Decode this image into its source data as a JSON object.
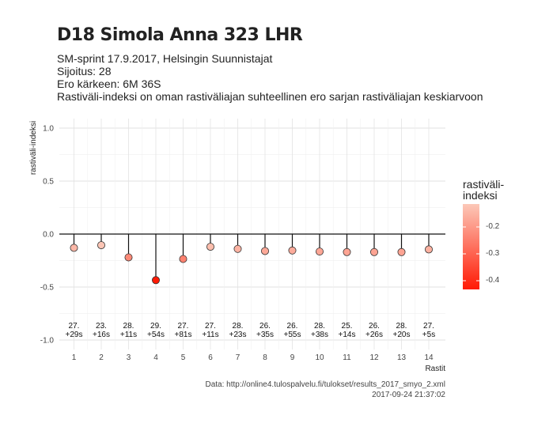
{
  "header": {
    "title": "D18 Simola Anna 323 LHR",
    "line1": "SM-sprint 17.9.2017, Helsingin Suunnistajat",
    "line2": "Sijoitus: 28",
    "line3": "Ero kärkeen: 6M 36S",
    "line4": "Rastiväli-indeksi on oman rastiväliajan suhteellinen ero sarjan rastiväliajan keskiarvoon"
  },
  "caption": {
    "source": "Data: http://online4.tulospalvelu.fi/tulokset/results_2017_smyo_2.xml",
    "timestamp": "2017-09-24 21:37:02"
  },
  "legend": {
    "title_line1": "rastiväli-",
    "title_line2": "indeksi",
    "ticks": [
      "-0.2",
      "-0.3",
      "-0.4"
    ]
  },
  "chart_data": {
    "type": "scatter",
    "xlabel": "Rastit",
    "ylabel": "rastiväli-indeksi",
    "ylim": [
      -1.0,
      1.0
    ],
    "yticks": [
      "1.0",
      "0.5",
      "0.0",
      "-0.5",
      "-1.0"
    ],
    "x": [
      1,
      2,
      3,
      4,
      5,
      6,
      7,
      8,
      9,
      10,
      11,
      12,
      13,
      14
    ],
    "values": [
      -0.13,
      -0.105,
      -0.22,
      -0.435,
      -0.235,
      -0.12,
      -0.14,
      -0.16,
      -0.155,
      -0.165,
      -0.17,
      -0.17,
      -0.17,
      -0.145
    ],
    "labels_top": [
      "27.",
      "23.",
      "28.",
      "29.",
      "27.",
      "27.",
      "28.",
      "26.",
      "26.",
      "28.",
      "25.",
      "26.",
      "28.",
      "27."
    ],
    "labels_bottom": [
      "+29s",
      "+16s",
      "+11s",
      "+54s",
      "+81s",
      "+11s",
      "+23s",
      "+35s",
      "+55s",
      "+38s",
      "+14s",
      "+26s",
      "+20s",
      "+5s"
    ],
    "color_range": {
      "low_value": -0.435,
      "high_value": -0.1,
      "low_color": "#ff1a05",
      "high_color": "#fcc8b8"
    },
    "grid": true
  }
}
